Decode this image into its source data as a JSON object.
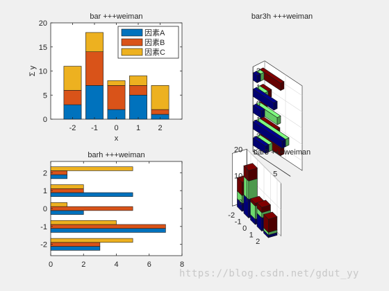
{
  "watermark": "https://blog.csdn.net/gdut_yy",
  "colors": {
    "factor_a": "#0072bd",
    "factor_b": "#d95319",
    "factor_c": "#edb120",
    "bar3_low": "#00008f",
    "bar3_mid": "#80ff80",
    "bar3_high": "#800000"
  },
  "chart_data": [
    {
      "type": "bar",
      "stacked": true,
      "title": "bar +++weiman",
      "xlabel": "x",
      "ylabel": "Σ y",
      "categories": [
        -2,
        -1,
        0,
        1,
        2
      ],
      "series": [
        {
          "name": "因素A",
          "values": [
            3,
            7,
            2,
            5,
            1
          ]
        },
        {
          "name": "因素B",
          "values": [
            3,
            7,
            5,
            2,
            1
          ]
        },
        {
          "name": "因素C",
          "values": [
            5,
            4,
            1,
            2,
            5
          ]
        }
      ],
      "xticks": [
        -2,
        -1,
        0,
        1,
        2
      ],
      "xlim": [
        -3,
        3
      ],
      "ylim": [
        0,
        20
      ],
      "yticks": [
        0,
        5,
        10,
        15,
        20
      ],
      "legend_position": "top-right",
      "grid": false
    },
    {
      "type": "bar",
      "variant": "bar3h",
      "title": "bar3h +++weiman",
      "categories": [
        -2,
        -1,
        0,
        1,
        2
      ],
      "series": [
        {
          "values": [
            3,
            7,
            2,
            5,
            1
          ]
        },
        {
          "values": [
            3,
            7,
            5,
            2,
            1
          ]
        },
        {
          "values": [
            5,
            4,
            1,
            2,
            5
          ]
        }
      ],
      "yticks": [
        2,
        1,
        0,
        -1,
        -2
      ],
      "xticks": [
        0,
        5
      ],
      "grid": true
    },
    {
      "type": "bar",
      "orientation": "horizontal",
      "grouped": true,
      "title": "barh +++weiman",
      "categories": [
        -2,
        -1,
        0,
        1,
        2
      ],
      "series": [
        {
          "values": [
            3,
            7,
            2,
            5,
            1
          ]
        },
        {
          "values": [
            3,
            7,
            5,
            2,
            1
          ]
        },
        {
          "values": [
            5,
            4,
            1,
            2,
            5
          ]
        }
      ],
      "xlim": [
        0,
        8
      ],
      "xticks": [
        0,
        2,
        4,
        6,
        8
      ],
      "yticks": [
        -2,
        -1,
        0,
        1,
        2
      ],
      "grid": false
    },
    {
      "type": "bar",
      "variant": "bar3",
      "stacked": true,
      "title": "bar3 +++weiman",
      "categories": [
        -2,
        -1,
        0,
        1,
        2
      ],
      "series": [
        {
          "values": [
            3,
            7,
            2,
            5,
            1
          ]
        },
        {
          "values": [
            3,
            7,
            5,
            2,
            1
          ]
        },
        {
          "values": [
            5,
            4,
            1,
            2,
            5
          ]
        }
      ],
      "zlim": [
        0,
        20
      ],
      "zticks": [
        0,
        10,
        20
      ],
      "xticks": [
        -2,
        -1,
        0,
        1,
        2
      ],
      "grid": true
    }
  ]
}
